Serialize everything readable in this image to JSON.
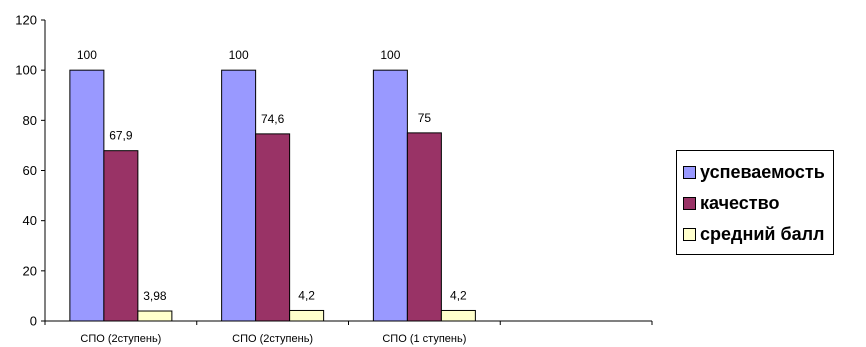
{
  "chart_data": {
    "type": "bar",
    "categories": [
      "СПО (2ступень)",
      "СПО (2ступень)",
      "СПО (1 ступень)"
    ],
    "series": [
      {
        "name": "успеваемость",
        "values": [
          100,
          100,
          100
        ],
        "labels": [
          "100",
          "100",
          "100"
        ],
        "color": "#9999ff"
      },
      {
        "name": "качество",
        "values": [
          67.9,
          74.6,
          75
        ],
        "labels": [
          "67,9",
          "74,6",
          "75"
        ],
        "color": "#993366"
      },
      {
        "name": "средний балл",
        "values": [
          3.98,
          4.2,
          4.2
        ],
        "labels": [
          "3,98",
          "4,2",
          "4,2"
        ],
        "color": "#ffffcc"
      }
    ],
    "ylim": [
      0,
      120
    ],
    "yticks": [
      0,
      20,
      40,
      60,
      80,
      100,
      120
    ],
    "ytick_labels": [
      "0",
      "20",
      "40",
      "60",
      "80",
      "100",
      "120"
    ],
    "category_slots": 4,
    "grid": false,
    "legend_position": "right"
  }
}
